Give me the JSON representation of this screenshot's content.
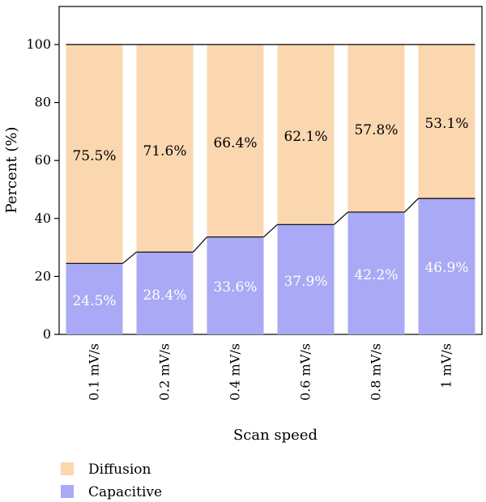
{
  "chart_data": {
    "type": "bar",
    "stacked": true,
    "categories": [
      "0.1 mV/s",
      "0.2 mV/s",
      "0.4 mV/s",
      "0.6 mV/s",
      "0.8 mV/s",
      "1 mV/s"
    ],
    "series": [
      {
        "name": "Capacitive",
        "values": [
          24.5,
          28.4,
          33.6,
          37.9,
          42.2,
          46.9
        ],
        "labels": [
          "24.5%",
          "28.4%",
          "33.6%",
          "37.9%",
          "42.2%",
          "46.9%"
        ],
        "color": "#a9a9f5"
      },
      {
        "name": "Diffusion",
        "values": [
          75.5,
          71.6,
          66.4,
          62.1,
          57.8,
          53.1
        ],
        "labels": [
          "75.5%",
          "71.6%",
          "66.4%",
          "62.1%",
          "57.8%",
          "53.1%"
        ],
        "color": "#fbd7b0"
      }
    ],
    "xlabel": "Scan speed",
    "ylabel": "Percent (%)",
    "ylim": [
      0,
      100
    ],
    "yticks": [
      "0",
      "20",
      "40",
      "60",
      "80",
      "100"
    ],
    "grid": false,
    "legend": {
      "position": "bottom-left",
      "entries": [
        "Diffusion",
        "Capacitive"
      ]
    }
  },
  "colors": {
    "capacitive": "#a9a9f5",
    "diffusion": "#fbd7b0",
    "capacitive_label": "#ffffff",
    "diffusion_label": "#000000"
  }
}
